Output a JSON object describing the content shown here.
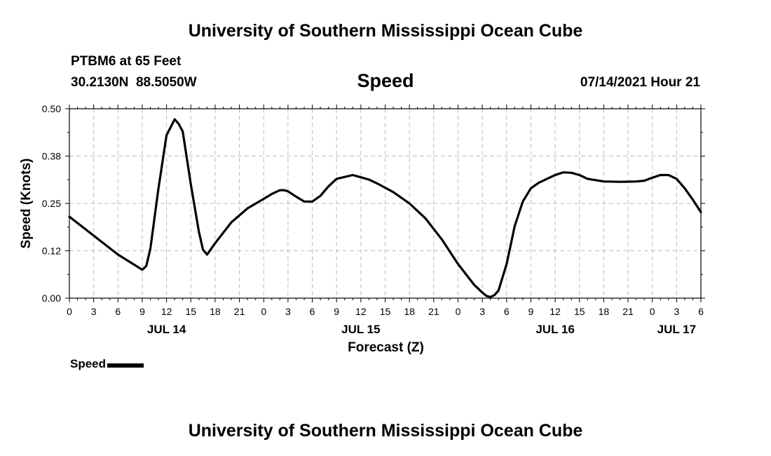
{
  "header": {
    "title": "University of Southern Mississippi Ocean Cube",
    "station": "PTBM6 at 65 Feet",
    "coordinates": "30.2130N  88.5050W",
    "subtitle": "Speed",
    "datetime": "07/14/2021 Hour 21"
  },
  "footer": {
    "title": "University of Southern Mississippi Ocean Cube"
  },
  "legend": {
    "label": "Speed"
  },
  "colors": {
    "line": "#000000",
    "grid": "#bdbdbd",
    "background": "#ffffff"
  },
  "chart_data": {
    "type": "line",
    "title": "Speed",
    "xlabel": "Forecast (Z)",
    "ylabel": "Speed (Knots)",
    "ylim": [
      0,
      0.5
    ],
    "yticks": [
      "0.00",
      "0.12",
      "0.25",
      "0.38",
      "0.50"
    ],
    "xlim": [
      0,
      78
    ],
    "x_unit": "hours since 07/14/2021 00Z",
    "xticks": [
      "0",
      "3",
      "6",
      "9",
      "12",
      "15",
      "18",
      "21",
      "0",
      "3",
      "6",
      "9",
      "12",
      "15",
      "18",
      "21",
      "0",
      "3",
      "6",
      "9",
      "12",
      "15",
      "18",
      "21",
      "0",
      "3",
      "6"
    ],
    "date_labels": [
      {
        "label": "JUL 14",
        "hour": 12
      },
      {
        "label": "JUL 15",
        "hour": 36
      },
      {
        "label": "JUL 16",
        "hour": 60
      },
      {
        "label": "JUL 17",
        "hour": 75
      }
    ],
    "grid": true,
    "legend_position": "bottom-left",
    "series": [
      {
        "name": "Speed",
        "x": [
          0,
          3,
          6,
          9,
          9.5,
          10,
          11,
          12,
          13,
          13.5,
          14,
          15,
          16,
          16.5,
          17,
          18,
          20,
          22,
          24,
          25,
          26,
          26.5,
          27,
          28,
          29,
          30,
          31,
          32,
          33,
          35,
          37,
          38,
          40,
          42,
          44,
          46,
          48,
          50,
          51,
          51.5,
          52,
          52.5,
          53,
          54,
          55,
          56,
          57,
          58,
          60,
          61,
          62,
          63,
          64,
          66,
          68,
          70,
          71,
          72,
          73,
          74,
          75,
          76,
          77,
          78
        ],
        "values": [
          0.215,
          0.165,
          0.115,
          0.075,
          0.085,
          0.13,
          0.29,
          0.43,
          0.472,
          0.46,
          0.44,
          0.3,
          0.175,
          0.128,
          0.115,
          0.145,
          0.2,
          0.237,
          0.262,
          0.275,
          0.285,
          0.285,
          0.282,
          0.268,
          0.255,
          0.255,
          0.27,
          0.295,
          0.315,
          0.325,
          0.313,
          0.303,
          0.28,
          0.25,
          0.21,
          0.155,
          0.09,
          0.035,
          0.015,
          0.006,
          0.003,
          0.008,
          0.02,
          0.09,
          0.19,
          0.255,
          0.29,
          0.305,
          0.325,
          0.332,
          0.331,
          0.325,
          0.315,
          0.308,
          0.307,
          0.308,
          0.31,
          0.318,
          0.325,
          0.325,
          0.315,
          0.29,
          0.26,
          0.227
        ]
      }
    ]
  }
}
